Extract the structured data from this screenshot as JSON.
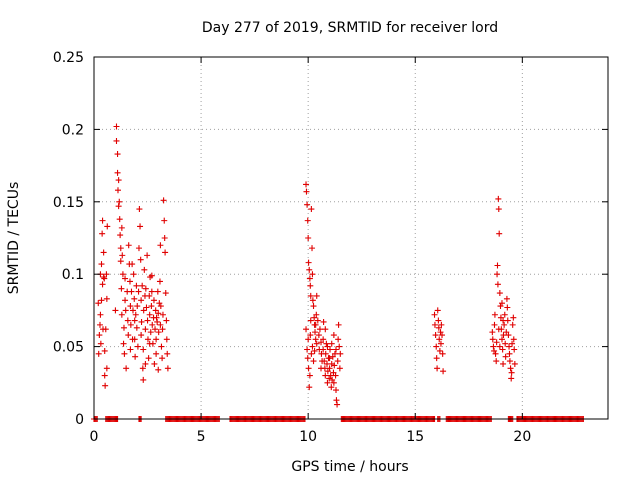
{
  "chart_data": {
    "type": "scatter",
    "title": "Day 277 of 2019, SRMTID for receiver lord",
    "xlabel": "GPS time / hours",
    "ylabel": "SRMTID / TECUs",
    "xlim": [
      0,
      24
    ],
    "ylim": [
      0,
      0.25
    ],
    "xticks": [
      0,
      5,
      10,
      15,
      20
    ],
    "xtick_labels": [
      "0",
      "5",
      "10",
      "15",
      "20"
    ],
    "yticks": [
      0,
      0.05,
      0.1,
      0.15,
      0.2,
      0.25
    ],
    "ytick_labels": [
      "0",
      "0.05",
      "0.1",
      "0.15",
      "0.2",
      "0.25"
    ],
    "grid": true,
    "marker": "plus",
    "color": "#e00000",
    "series": [
      {
        "name": "SRMTID",
        "points": [
          [
            0.2,
            0.08
          ],
          [
            0.22,
            0.045
          ],
          [
            0.25,
            0.058
          ],
          [
            0.28,
            0.065
          ],
          [
            0.3,
            0.1
          ],
          [
            0.3,
            0.072
          ],
          [
            0.32,
            0.052
          ],
          [
            0.35,
            0.082
          ],
          [
            0.35,
            0.107
          ],
          [
            0.38,
            0.128
          ],
          [
            0.4,
            0.093
          ],
          [
            0.4,
            0.137
          ],
          [
            0.42,
            0.062
          ],
          [
            0.45,
            0.098
          ],
          [
            0.45,
            0.115
          ],
          [
            0.48,
            0.097
          ],
          [
            0.5,
            0.047
          ],
          [
            0.5,
            0.03
          ],
          [
            0.52,
            0.023
          ],
          [
            0.55,
            0.062
          ],
          [
            0.58,
            0.1
          ],
          [
            0.6,
            0.083
          ],
          [
            0.6,
            0.035
          ],
          [
            0.62,
            0.133
          ],
          [
            1.0,
            0.075
          ],
          [
            1.05,
            0.202
          ],
          [
            1.05,
            0.192
          ],
          [
            1.1,
            0.183
          ],
          [
            1.1,
            0.17
          ],
          [
            1.12,
            0.158
          ],
          [
            1.15,
            0.147
          ],
          [
            1.15,
            0.165
          ],
          [
            1.18,
            0.15
          ],
          [
            1.2,
            0.138
          ],
          [
            1.22,
            0.127
          ],
          [
            1.25,
            0.118
          ],
          [
            1.25,
            0.109
          ],
          [
            1.28,
            0.09
          ],
          [
            1.3,
            0.072
          ],
          [
            1.3,
            0.132
          ],
          [
            1.32,
            0.113
          ],
          [
            1.35,
            0.1
          ],
          [
            1.38,
            0.052
          ],
          [
            1.4,
            0.063
          ],
          [
            1.42,
            0.045
          ],
          [
            1.45,
            0.082
          ],
          [
            1.45,
            0.097
          ],
          [
            1.48,
            0.075
          ],
          [
            1.5,
            0.035
          ],
          [
            1.55,
            0.088
          ],
          [
            1.58,
            0.068
          ],
          [
            1.6,
            0.058
          ],
          [
            1.62,
            0.12
          ],
          [
            1.65,
            0.107
          ],
          [
            1.68,
            0.095
          ],
          [
            1.7,
            0.078
          ],
          [
            1.72,
            0.065
          ],
          [
            1.75,
            0.088
          ],
          [
            1.78,
            0.107
          ],
          [
            1.8,
            0.055
          ],
          [
            1.82,
            0.075
          ],
          [
            1.85,
            0.1
          ],
          [
            1.88,
            0.083
          ],
          [
            1.9,
            0.068
          ],
          [
            1.92,
            0.043
          ],
          [
            1.95,
            0.072
          ],
          [
            1.98,
            0.092
          ],
          [
            2.0,
            0.063
          ],
          [
            2.02,
            0.078
          ],
          [
            2.05,
            0.05
          ],
          [
            2.08,
            0.088
          ],
          [
            2.1,
            0.118
          ],
          [
            2.12,
            0.145
          ],
          [
            2.15,
            0.133
          ],
          [
            2.18,
            0.11
          ],
          [
            2.2,
            0.082
          ],
          [
            2.22,
            0.067
          ],
          [
            2.25,
            0.092
          ],
          [
            2.28,
            0.035
          ],
          [
            2.3,
            0.027
          ],
          [
            2.3,
            0.048
          ],
          [
            2.32,
            0.075
          ],
          [
            2.35,
            0.103
          ],
          [
            2.38,
            0.085
          ],
          [
            2.4,
            0.062
          ],
          [
            2.42,
            0.09
          ],
          [
            2.45,
            0.077
          ],
          [
            2.48,
            0.113
          ],
          [
            2.5,
            0.068
          ],
          [
            2.52,
            0.055
          ],
          [
            2.55,
            0.042
          ],
          [
            2.58,
            0.085
          ],
          [
            2.6,
            0.072
          ],
          [
            2.62,
            0.098
          ],
          [
            2.65,
            0.06
          ],
          [
            2.68,
            0.078
          ],
          [
            2.7,
            0.088
          ],
          [
            2.72,
            0.065
          ],
          [
            2.75,
            0.052
          ],
          [
            2.78,
            0.07
          ],
          [
            2.8,
            0.082
          ],
          [
            2.82,
            0.038
          ],
          [
            2.85,
            0.062
          ],
          [
            2.88,
            0.075
          ],
          [
            2.9,
            0.055
          ],
          [
            2.92,
            0.07
          ],
          [
            2.95,
            0.067
          ],
          [
            2.98,
            0.088
          ],
          [
            3.0,
            0.073
          ],
          [
            3.02,
            0.06
          ],
          [
            3.05,
            0.08
          ],
          [
            3.08,
            0.095
          ],
          [
            3.1,
            0.065
          ],
          [
            3.12,
            0.078
          ],
          [
            3.15,
            0.05
          ],
          [
            3.18,
            0.042
          ],
          [
            3.2,
            0.062
          ],
          [
            3.22,
            0.072
          ],
          [
            3.25,
            0.151
          ],
          [
            3.28,
            0.137
          ],
          [
            3.3,
            0.125
          ],
          [
            3.32,
            0.115
          ],
          [
            3.35,
            0.087
          ],
          [
            3.38,
            0.068
          ],
          [
            3.4,
            0.055
          ],
          [
            3.42,
            0.045
          ],
          [
            3.45,
            0.035
          ],
          [
            3.1,
            0.12
          ],
          [
            2.6,
            0.052
          ],
          [
            2.4,
            0.038
          ],
          [
            2.9,
            0.045
          ],
          [
            3.0,
            0.034
          ],
          [
            1.7,
            0.048
          ],
          [
            1.9,
            0.055
          ],
          [
            2.2,
            0.058
          ],
          [
            2.7,
            0.099
          ],
          [
            9.9,
            0.162
          ],
          [
            9.92,
            0.157
          ],
          [
            9.95,
            0.148
          ],
          [
            9.98,
            0.137
          ],
          [
            10.0,
            0.125
          ],
          [
            10.02,
            0.108
          ],
          [
            10.05,
            0.103
          ],
          [
            10.08,
            0.097
          ],
          [
            10.1,
            0.092
          ],
          [
            10.12,
            0.085
          ],
          [
            10.15,
            0.145
          ],
          [
            10.18,
            0.118
          ],
          [
            10.2,
            0.1
          ],
          [
            10.22,
            0.082
          ],
          [
            10.25,
            0.078
          ],
          [
            10.28,
            0.07
          ],
          [
            10.3,
            0.065
          ],
          [
            10.32,
            0.06
          ],
          [
            10.35,
            0.055
          ],
          [
            10.38,
            0.072
          ],
          [
            10.4,
            0.085
          ],
          [
            9.9,
            0.062
          ],
          [
            9.95,
            0.048
          ],
          [
            9.98,
            0.042
          ],
          [
            10.0,
            0.055
          ],
          [
            10.02,
            0.035
          ],
          [
            10.05,
            0.022
          ],
          [
            10.08,
            0.03
          ],
          [
            10.1,
            0.058
          ],
          [
            10.12,
            0.068
          ],
          [
            10.15,
            0.045
          ],
          [
            10.2,
            0.05
          ],
          [
            10.25,
            0.04
          ],
          [
            10.3,
            0.047
          ],
          [
            10.35,
            0.065
          ],
          [
            10.4,
            0.052
          ],
          [
            10.45,
            0.068
          ],
          [
            10.5,
            0.058
          ],
          [
            10.52,
            0.048
          ],
          [
            10.55,
            0.062
          ],
          [
            10.6,
            0.053
          ],
          [
            10.62,
            0.045
          ],
          [
            10.65,
            0.04
          ],
          [
            10.7,
            0.055
          ],
          [
            10.72,
            0.067
          ],
          [
            10.75,
            0.04
          ],
          [
            10.78,
            0.035
          ],
          [
            10.8,
            0.03
          ],
          [
            10.82,
            0.045
          ],
          [
            10.85,
            0.052
          ],
          [
            10.88,
            0.038
          ],
          [
            10.9,
            0.025
          ],
          [
            10.92,
            0.033
          ],
          [
            10.95,
            0.042
          ],
          [
            10.98,
            0.028
          ],
          [
            11.0,
            0.035
          ],
          [
            11.02,
            0.048
          ],
          [
            11.05,
            0.03
          ],
          [
            11.08,
            0.022
          ],
          [
            11.1,
            0.038
          ],
          [
            11.12,
            0.027
          ],
          [
            11.15,
            0.043
          ],
          [
            11.18,
            0.032
          ],
          [
            11.2,
            0.025
          ],
          [
            11.22,
            0.037
          ],
          [
            11.25,
            0.045
          ],
          [
            11.28,
            0.03
          ],
          [
            11.3,
            0.02
          ],
          [
            11.32,
            0.013
          ],
          [
            11.35,
            0.01
          ],
          [
            11.38,
            0.04
          ],
          [
            11.4,
            0.055
          ],
          [
            11.42,
            0.065
          ],
          [
            11.45,
            0.05
          ],
          [
            11.48,
            0.035
          ],
          [
            11.5,
            0.045
          ],
          [
            10.9,
            0.05
          ],
          [
            11.0,
            0.042
          ],
          [
            11.1,
            0.052
          ],
          [
            11.2,
            0.058
          ],
          [
            10.8,
            0.062
          ],
          [
            10.7,
            0.048
          ],
          [
            10.6,
            0.035
          ],
          [
            11.3,
            0.048
          ],
          [
            15.9,
            0.072
          ],
          [
            15.92,
            0.065
          ],
          [
            15.95,
            0.058
          ],
          [
            15.98,
            0.05
          ],
          [
            16.0,
            0.042
          ],
          [
            16.02,
            0.035
          ],
          [
            16.05,
            0.075
          ],
          [
            16.08,
            0.068
          ],
          [
            16.1,
            0.063
          ],
          [
            16.12,
            0.055
          ],
          [
            16.15,
            0.047
          ],
          [
            16.18,
            0.06
          ],
          [
            16.2,
            0.052
          ],
          [
            16.22,
            0.065
          ],
          [
            16.25,
            0.058
          ],
          [
            16.28,
            0.045
          ],
          [
            16.3,
            0.033
          ],
          [
            18.6,
            0.06
          ],
          [
            18.62,
            0.055
          ],
          [
            18.65,
            0.05
          ],
          [
            18.68,
            0.047
          ],
          [
            18.7,
            0.065
          ],
          [
            18.72,
            0.072
          ],
          [
            18.75,
            0.045
          ],
          [
            18.78,
            0.04
          ],
          [
            18.8,
            0.053
          ],
          [
            18.82,
            0.1
          ],
          [
            18.84,
            0.106
          ],
          [
            18.86,
            0.093
          ],
          [
            18.88,
            0.152
          ],
          [
            18.9,
            0.145
          ],
          [
            18.92,
            0.128
          ],
          [
            18.95,
            0.087
          ],
          [
            18.98,
            0.078
          ],
          [
            19.0,
            0.07
          ],
          [
            19.02,
            0.062
          ],
          [
            19.05,
            0.055
          ],
          [
            19.08,
            0.048
          ],
          [
            19.1,
            0.038
          ],
          [
            19.12,
            0.058
          ],
          [
            19.15,
            0.065
          ],
          [
            19.18,
            0.072
          ],
          [
            19.2,
            0.052
          ],
          [
            19.22,
            0.043
          ],
          [
            19.25,
            0.06
          ],
          [
            19.28,
            0.083
          ],
          [
            19.3,
            0.077
          ],
          [
            19.32,
            0.068
          ],
          [
            19.35,
            0.058
          ],
          [
            19.38,
            0.05
          ],
          [
            19.4,
            0.045
          ],
          [
            19.42,
            0.04
          ],
          [
            19.45,
            0.035
          ],
          [
            19.48,
            0.028
          ],
          [
            19.5,
            0.032
          ],
          [
            19.52,
            0.052
          ],
          [
            19.55,
            0.065
          ],
          [
            19.58,
            0.07
          ],
          [
            19.6,
            0.055
          ],
          [
            19.62,
            0.048
          ],
          [
            19.65,
            0.038
          ],
          [
            19.05,
            0.08
          ],
          [
            19.1,
            0.068
          ],
          [
            18.9,
            0.062
          ],
          [
            18.95,
            0.05
          ]
        ]
      }
    ],
    "zero_ranges": [
      [
        0.0,
        0.15
      ],
      [
        0.55,
        1.1
      ],
      [
        2.1,
        2.2
      ],
      [
        3.35,
        5.85
      ],
      [
        6.35,
        9.85
      ],
      [
        11.55,
        15.9
      ],
      [
        16.05,
        16.15
      ],
      [
        16.45,
        18.55
      ],
      [
        19.35,
        19.55
      ],
      [
        19.75,
        22.85
      ]
    ]
  }
}
